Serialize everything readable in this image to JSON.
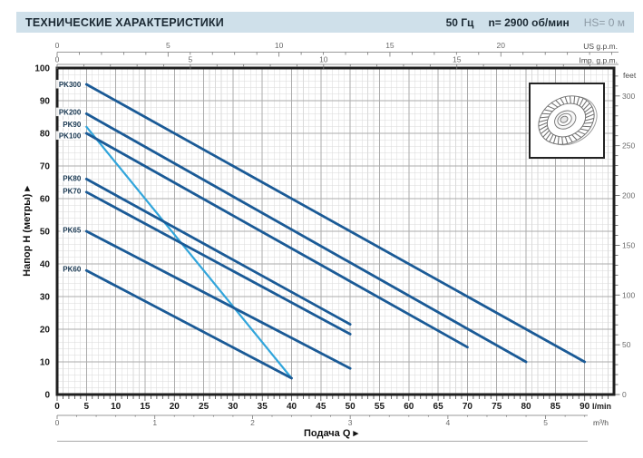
{
  "header": {
    "title": "ТЕХНИЧЕСКИЕ ХАРАКТЕРИСТИКИ",
    "frequency": "50 Гц",
    "speed": "n= 2900 об/мин",
    "suction_head": "HS= 0 м"
  },
  "chart_data": {
    "type": "line",
    "title": "",
    "xlabel": "Подача Q",
    "ylabel": "Напор H (метры)",
    "grid": true,
    "legend_position": "inline-curve-labels",
    "x_axis": {
      "primary": {
        "unit": "l/min",
        "min": 0,
        "max": 95,
        "ticks": [
          0,
          5,
          10,
          15,
          20,
          25,
          30,
          35,
          40,
          45,
          50,
          55,
          60,
          65,
          70,
          75,
          80,
          85,
          90
        ],
        "minor_step": 1
      },
      "secondary": {
        "unit": "m³/h",
        "ticks": [
          0,
          1,
          2,
          3,
          4,
          5
        ],
        "minor_step": 0.2,
        "lmin_per_unit": 16.6667
      },
      "top_us": {
        "unit": "US g.p.m.",
        "ticks": [
          0,
          5,
          10,
          15,
          20
        ],
        "minor_step": 1,
        "lmin_per_unit": 3.785
      },
      "top_imp": {
        "unit": "Imp. g.p.m.",
        "ticks": [
          0,
          5,
          10,
          15
        ],
        "minor_step": 1,
        "lmin_per_unit": 4.546
      }
    },
    "y_axis": {
      "primary": {
        "unit": "м",
        "min": 0,
        "max": 100,
        "ticks": [
          0,
          10,
          20,
          30,
          40,
          50,
          60,
          70,
          80,
          90,
          100
        ],
        "minor_step": 2
      },
      "secondary": {
        "unit": "feet",
        "ticks": [
          0,
          50,
          100,
          150,
          200,
          250,
          300
        ],
        "minor_step": 10,
        "m_per_unit": 0.3048
      }
    },
    "series": [
      {
        "name": "PK300",
        "color": "#1a5a96",
        "width": 2.8,
        "points": [
          [
            5,
            95
          ],
          [
            90,
            10
          ]
        ],
        "label_h": 95
      },
      {
        "name": "PK200",
        "color": "#1a5a96",
        "width": 2.8,
        "points": [
          [
            5,
            86
          ],
          [
            80,
            10
          ]
        ],
        "label_h": 86.5
      },
      {
        "name": "PK90",
        "color": "#31a5db",
        "width": 2.2,
        "points": [
          [
            5,
            82
          ],
          [
            40,
            5
          ]
        ],
        "label_h": 82.8
      },
      {
        "name": "PK100",
        "color": "#1a5a96",
        "width": 2.8,
        "points": [
          [
            5,
            80
          ],
          [
            70,
            14.5
          ]
        ],
        "label_h": 79.3
      },
      {
        "name": "PK80",
        "color": "#1a5a96",
        "width": 2.8,
        "points": [
          [
            5,
            66
          ],
          [
            50,
            21.5
          ]
        ],
        "label_h": 66.3
      },
      {
        "name": "PK70",
        "color": "#1a5a96",
        "width": 2.8,
        "points": [
          [
            5,
            62
          ],
          [
            50,
            18.5
          ]
        ],
        "label_h": 62.3
      },
      {
        "name": "PK65",
        "color": "#1a5a96",
        "width": 2.8,
        "points": [
          [
            5,
            50
          ],
          [
            50,
            8
          ]
        ],
        "label_h": 50.4
      },
      {
        "name": "PK60",
        "color": "#1a5a96",
        "width": 2.8,
        "points": [
          [
            5,
            38
          ],
          [
            40,
            5
          ]
        ],
        "label_h": 38.5
      }
    ],
    "colors": {
      "grid_minor": "#dadada",
      "grid_major": "#ababab",
      "frame": "#1f1f1f"
    }
  },
  "impeller": {
    "alt": "peripheral pump impeller drawing"
  }
}
